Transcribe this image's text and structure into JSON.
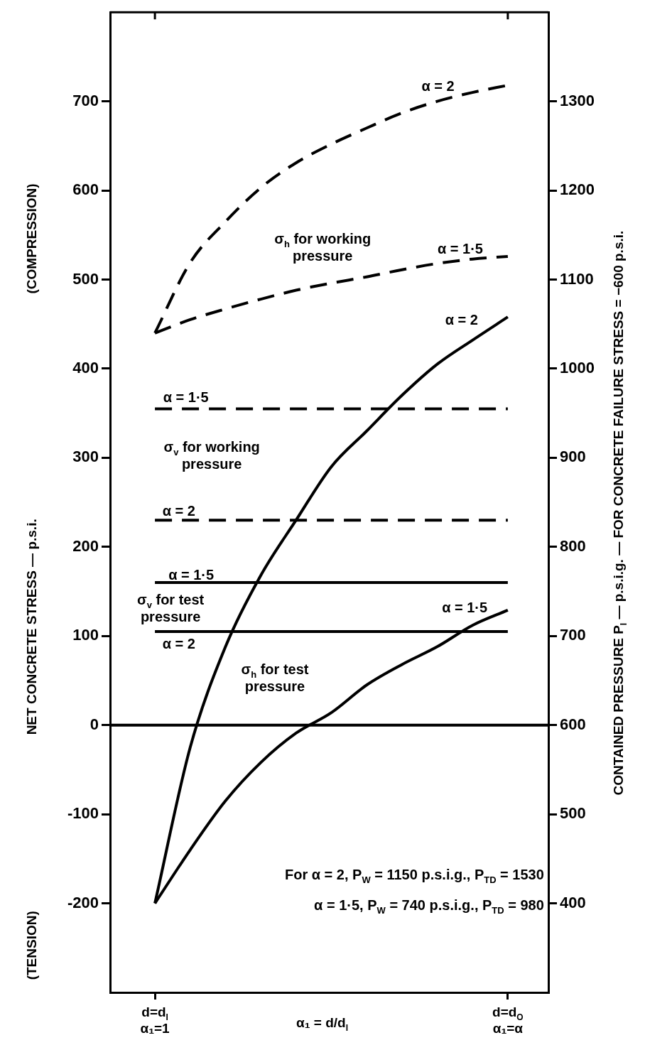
{
  "chart_data": {
    "type": "line",
    "xlabel": "α₁ = d/d$_{I}$",
    "ylabel": "NET CONCRETE STRESS — p.s.i.",
    "y2label": "CONTAINED PRESSURE P$_{I}$ — p.s.i.g. — FOR CONCRETE FAILURE STRESS = −600 p.s.i.",
    "categories": [
      "d=d$_{I}$\nα₁=1",
      null,
      null,
      null,
      null,
      null,
      null,
      null,
      null,
      null,
      "d=d$_{O}$\nα₁=α"
    ],
    "ylim": [
      -300,
      800
    ],
    "yticks": [
      -200,
      -100,
      0,
      100,
      200,
      300,
      400,
      500,
      600,
      700
    ],
    "y2lim": [
      300,
      1400
    ],
    "y2ticks": [
      400,
      500,
      600,
      700,
      800,
      900,
      1000,
      1100,
      1200,
      1300
    ],
    "grid": false,
    "legend": false,
    "marker": "none",
    "ref_lines": [
      {
        "axis": "y",
        "value": 0,
        "color": "#000000",
        "line_style": "solid"
      }
    ],
    "series": [
      {
        "color": "#000000",
        "line_style": "dashed",
        "values": [
          440,
          519,
          565,
          603,
          631,
          652,
          670,
          687,
          700,
          710,
          718
        ]
      },
      {
        "color": "#000000",
        "line_style": "dashed",
        "values": [
          440,
          455,
          467,
          478,
          488,
          496,
          503,
          511,
          518,
          523,
          526
        ]
      },
      {
        "color": "#000000",
        "line_style": "dashed",
        "values": [
          355,
          355,
          355,
          355,
          355,
          355,
          355,
          355,
          355,
          355,
          355
        ]
      },
      {
        "color": "#000000",
        "line_style": "dashed",
        "values": [
          230,
          230,
          230,
          230,
          230,
          230,
          230,
          230,
          230,
          230,
          230
        ]
      },
      {
        "color": "#000000",
        "line_style": "solid",
        "values": [
          160,
          160,
          160,
          160,
          160,
          160,
          160,
          160,
          160,
          160,
          160
        ]
      },
      {
        "color": "#000000",
        "line_style": "solid",
        "values": [
          105,
          105,
          105,
          105,
          105,
          105,
          105,
          105,
          105,
          105,
          105
        ]
      },
      {
        "color": "#000000",
        "line_style": "solid",
        "values": [
          -200,
          -25,
          88,
          168,
          230,
          290,
          330,
          370,
          405,
          432,
          458
        ]
      },
      {
        "color": "#000000",
        "line_style": "solid",
        "values": [
          -200,
          -140,
          -85,
          -42,
          -9,
          14,
          45,
          68,
          88,
          112,
          129
        ]
      }
    ],
    "annotations": [
      "α = 2",
      "σ$_{h}$ for working\npressure",
      "α = 1·5",
      "α = 1·5",
      "σ$_{v}$ for working\npressure",
      "α = 2",
      "α = 1·5",
      "σ$_{v}$ for test\npressure",
      "α = 2",
      "α = 2",
      "α = 1·5",
      "σ$_{h}$ for test\npressure",
      "(COMPRESSION)",
      "(TENSION)",
      "For α = 2, P$_{W}$ = 1150 p.s.i.g., P$_{TD}$ = 1530",
      "α = 1·5, P$_{W}$ = 740 p.s.i.g., P$_{TD}$ = 980"
    ]
  }
}
